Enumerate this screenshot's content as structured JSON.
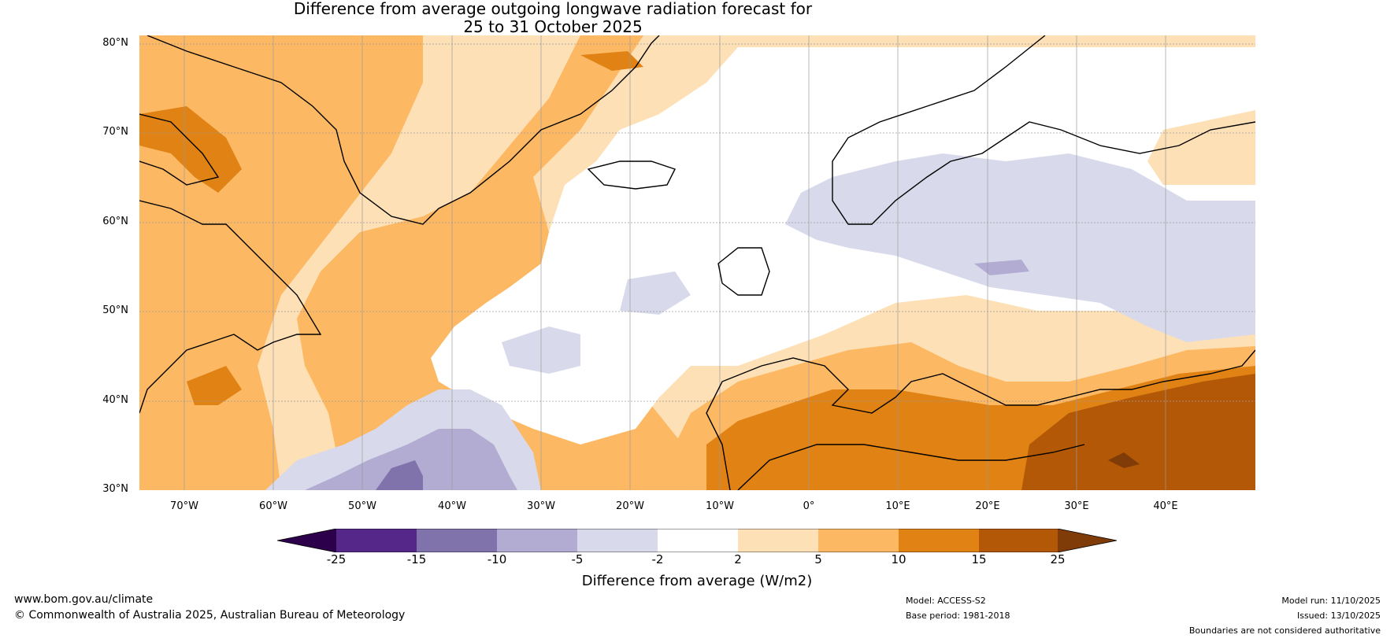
{
  "title": {
    "line1": "Difference from average outgoing longwave radiation forecast for",
    "line2": "25 to 31 October 2025"
  },
  "map": {
    "lat_labels": [
      "80°N",
      "70°N",
      "60°N",
      "50°N",
      "40°N",
      "30°N"
    ],
    "lon_labels": [
      "70°W",
      "60°W",
      "50°W",
      "40°W",
      "30°W",
      "20°W",
      "10°W",
      "0°",
      "10°E",
      "20°E",
      "30°E",
      "40°E"
    ],
    "lon_range": [
      -75,
      50
    ],
    "lat_range": [
      30,
      81
    ]
  },
  "colorbar": {
    "ticks": [
      "-25",
      "-15",
      "-10",
      "-5",
      "-2",
      "2",
      "5",
      "10",
      "15",
      "25"
    ],
    "colors": [
      "#2d004b",
      "#542788",
      "#8073ac",
      "#b2abd2",
      "#d8daeb",
      "#ffffff",
      "#fee0b6",
      "#fdb863",
      "#e08214",
      "#b35806",
      "#7f3b08"
    ],
    "label": "Difference from average (W/m2)"
  },
  "footer": {
    "website": "www.bom.gov.au/climate",
    "copyright": "© Commonwealth of Australia 2025, Australian Bureau of Meteorology",
    "model": "Model: ACCESS-S2",
    "base_period": "Base period: 1981-2018",
    "model_run": "Model run: 11/10/2025",
    "issued": "Issued: 13/10/2025",
    "disclaimer": "Boundaries are not considered authoritative"
  }
}
